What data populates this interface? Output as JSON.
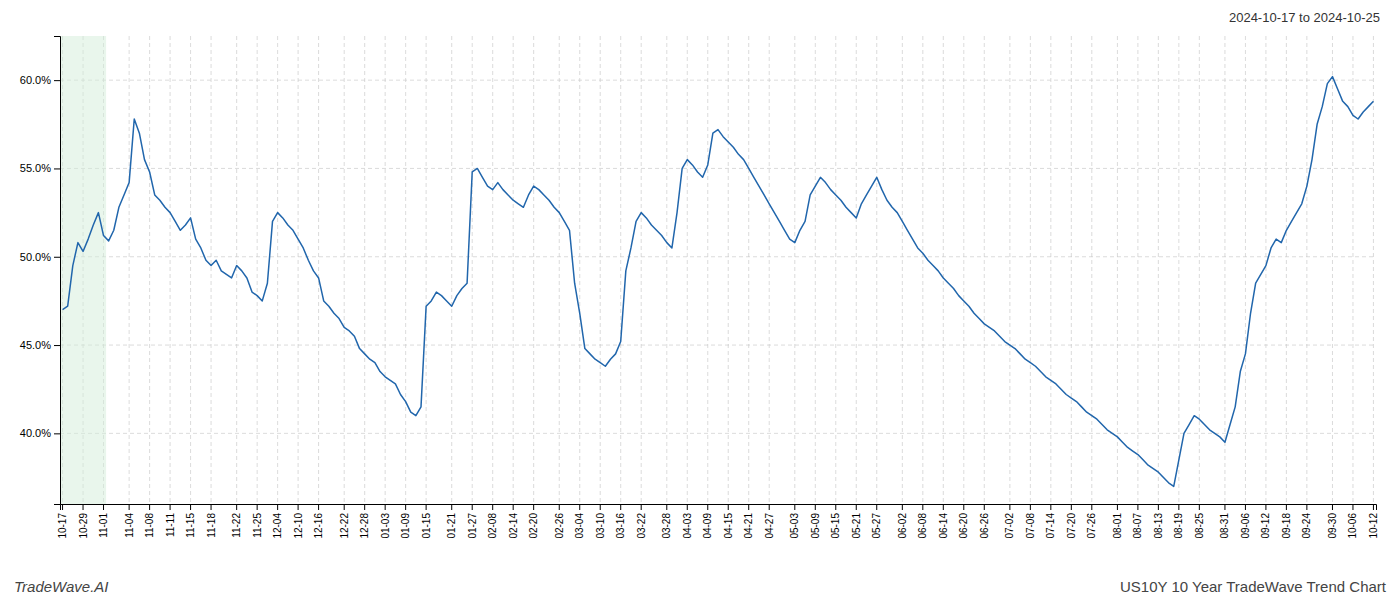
{
  "chart_data": {
    "type": "line",
    "title": "US10Y 10 Year TradeWave Trend Chart",
    "subtitle": "2024-10-17 to 2024-10-25",
    "annotations": [
      "TradeWave.AI"
    ],
    "color": "#2166ac",
    "grid": true,
    "highlight": {
      "x": [
        0,
        8
      ],
      "color": "#d4edda"
    },
    "ylim": [
      36.0,
      62.5
    ],
    "yticks": [
      {
        "value": 40.0,
        "label": "40.0%"
      },
      {
        "value": 45.0,
        "label": "45.0%"
      },
      {
        "value": 50.0,
        "label": "50.0%"
      },
      {
        "value": 55.0,
        "label": "55.0%"
      },
      {
        "value": 60.0,
        "label": "60.0%"
      }
    ],
    "categories": [
      "10-17",
      null,
      null,
      null,
      "10-29",
      null,
      null,
      null,
      "11-01",
      null,
      null,
      null,
      null,
      "11-04",
      null,
      null,
      null,
      "11-08",
      null,
      null,
      null,
      "11-11",
      null,
      null,
      null,
      "11-15",
      null,
      null,
      null,
      "11-18",
      null,
      null,
      null,
      null,
      "11-22",
      null,
      null,
      null,
      "11-25",
      null,
      null,
      null,
      "12-04",
      null,
      null,
      null,
      "12-10",
      null,
      null,
      null,
      "12-16",
      null,
      null,
      null,
      null,
      "12-22",
      null,
      null,
      null,
      "12-28",
      null,
      null,
      null,
      "01-03",
      null,
      null,
      null,
      "01-09",
      null,
      null,
      null,
      "01-15",
      null,
      null,
      null,
      null,
      "01-21",
      null,
      null,
      null,
      "01-27",
      null,
      null,
      null,
      "02-08",
      null,
      null,
      null,
      "02-14",
      null,
      null,
      null,
      "02-20",
      null,
      null,
      null,
      null,
      "02-26",
      null,
      null,
      null,
      "03-04",
      null,
      null,
      null,
      "03-10",
      null,
      null,
      null,
      "03-16",
      null,
      null,
      null,
      "03-22",
      null,
      null,
      null,
      null,
      "03-28",
      null,
      null,
      null,
      "04-03",
      null,
      null,
      null,
      "04-09",
      null,
      null,
      null,
      "04-15",
      null,
      null,
      null,
      "04-21",
      null,
      null,
      null,
      "04-27",
      null,
      null,
      null,
      null,
      "05-03",
      null,
      null,
      null,
      "05-09",
      null,
      null,
      null,
      "05-15",
      null,
      null,
      null,
      "05-21",
      null,
      null,
      null,
      "05-27",
      null,
      null,
      null,
      null,
      "06-02",
      null,
      null,
      null,
      "06-08",
      null,
      null,
      null,
      "06-14",
      null,
      null,
      null,
      "06-20",
      null,
      null,
      null,
      "06-26",
      null,
      null,
      null,
      null,
      "07-02",
      null,
      null,
      null,
      "07-08",
      null,
      null,
      null,
      "07-14",
      null,
      null,
      null,
      "07-20",
      null,
      null,
      null,
      "07-26",
      null,
      null,
      null,
      null,
      "08-01",
      null,
      null,
      null,
      "08-07",
      null,
      null,
      null,
      "08-13",
      null,
      null,
      null,
      "08-19",
      null,
      null,
      null,
      "08-25",
      null,
      null,
      null,
      null,
      "08-31",
      null,
      null,
      null,
      "09-06",
      null,
      null,
      null,
      "09-12",
      null,
      null,
      null,
      "09-18",
      null,
      null,
      null,
      "09-24",
      null,
      null,
      null,
      null,
      "09-30",
      null,
      null,
      null,
      "10-06",
      null,
      null,
      null,
      "10-12"
    ],
    "values": [
      47.0,
      47.2,
      49.5,
      50.8,
      50.3,
      51.0,
      51.8,
      52.5,
      51.2,
      50.9,
      51.5,
      52.8,
      53.5,
      54.2,
      57.8,
      57.0,
      55.5,
      54.8,
      53.5,
      53.2,
      52.8,
      52.5,
      52.0,
      51.5,
      51.8,
      52.2,
      51.0,
      50.5,
      49.8,
      49.5,
      49.8,
      49.2,
      49.0,
      48.8,
      49.5,
      49.2,
      48.8,
      48.0,
      47.8,
      47.5,
      48.5,
      52.0,
      52.5,
      52.2,
      51.8,
      51.5,
      51.0,
      50.5,
      49.8,
      49.2,
      48.8,
      47.5,
      47.2,
      46.8,
      46.5,
      46.0,
      45.8,
      45.5,
      44.8,
      44.5,
      44.2,
      44.0,
      43.5,
      43.2,
      43.0,
      42.8,
      42.2,
      41.8,
      41.2,
      41.0,
      41.5,
      47.2,
      47.5,
      48.0,
      47.8,
      47.5,
      47.2,
      47.8,
      48.2,
      48.5,
      54.8,
      55.0,
      54.5,
      54.0,
      53.8,
      54.2,
      53.8,
      53.5,
      53.2,
      53.0,
      52.8,
      53.5,
      54.0,
      53.8,
      53.5,
      53.2,
      52.8,
      52.5,
      52.0,
      51.5,
      48.5,
      46.8,
      44.8,
      44.5,
      44.2,
      44.0,
      43.8,
      44.2,
      44.5,
      45.2,
      49.2,
      50.5,
      52.0,
      52.5,
      52.2,
      51.8,
      51.5,
      51.2,
      50.8,
      50.5,
      52.5,
      55.0,
      55.5,
      55.2,
      54.8,
      54.5,
      55.2,
      57.0,
      57.2,
      56.8,
      56.5,
      56.2,
      55.8,
      55.5,
      55.0,
      54.5,
      54.0,
      53.5,
      53.0,
      52.5,
      52.0,
      51.5,
      51.0,
      50.8,
      51.5,
      52.0,
      53.5,
      54.0,
      54.5,
      54.2,
      53.8,
      53.5,
      53.2,
      52.8,
      52.5,
      52.2,
      53.0,
      53.5,
      54.0,
      54.5,
      53.8,
      53.2,
      52.8,
      52.5,
      52.0,
      51.5,
      51.0,
      50.5,
      50.2,
      49.8,
      49.5,
      49.2,
      48.8,
      48.5,
      48.2,
      47.8,
      47.5,
      47.2,
      46.8,
      46.5,
      46.2,
      46.0,
      45.8,
      45.5,
      45.2,
      45.0,
      44.8,
      44.5,
      44.2,
      44.0,
      43.8,
      43.5,
      43.2,
      43.0,
      42.8,
      42.5,
      42.2,
      42.0,
      41.8,
      41.5,
      41.2,
      41.0,
      40.8,
      40.5,
      40.2,
      40.0,
      39.8,
      39.5,
      39.2,
      39.0,
      38.8,
      38.5,
      38.2,
      38.0,
      37.8,
      37.5,
      37.2,
      37.0,
      38.5,
      40.0,
      40.5,
      41.0,
      40.8,
      40.5,
      40.2,
      40.0,
      39.8,
      39.5,
      40.5,
      41.5,
      43.5,
      44.5,
      46.8,
      48.5,
      49.0,
      49.5,
      50.5,
      51.0,
      50.8,
      51.5,
      52.0,
      52.5,
      53.0,
      54.0,
      55.5,
      57.5,
      58.5,
      59.8,
      60.2,
      59.5,
      58.8,
      58.5,
      58.0,
      57.8,
      58.2,
      58.5,
      58.8
    ]
  }
}
